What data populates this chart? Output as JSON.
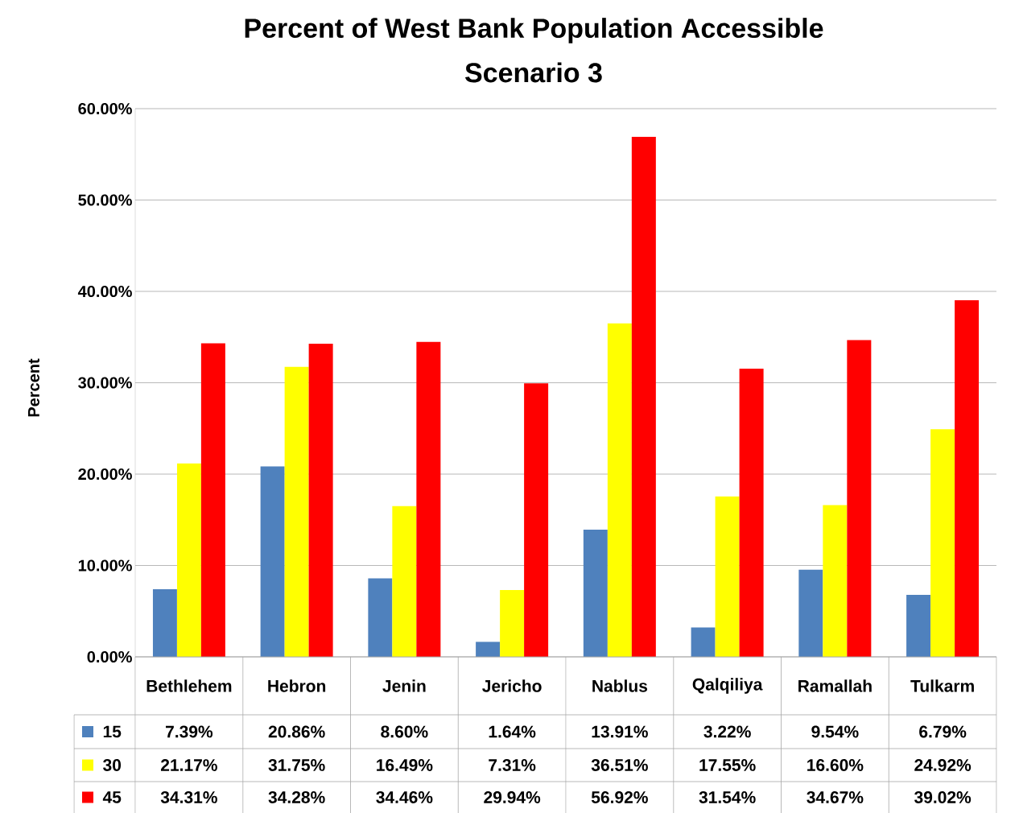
{
  "chart_data": {
    "type": "bar",
    "title": "Percent of West Bank Population Accessible",
    "subtitle": "Scenario 3",
    "ylabel": "Percent",
    "categories": [
      "Bethlehem",
      "Hebron",
      "Jenin",
      "Jericho",
      "Nablus",
      "Qalqiliya",
      "Ramallah",
      "Tulkarm"
    ],
    "series": [
      {
        "name": "15",
        "color": "#4f81bd",
        "values": [
          7.39,
          20.86,
          8.6,
          1.64,
          13.91,
          3.22,
          9.54,
          6.79
        ],
        "value_labels": [
          "7.39%",
          "20.86%",
          "8.60%",
          "1.64%",
          "13.91%",
          "3.22%",
          "9.54%",
          "6.79%"
        ]
      },
      {
        "name": "30",
        "color": "#ffff00",
        "values": [
          21.17,
          31.75,
          16.49,
          7.31,
          36.51,
          17.55,
          16.6,
          24.92
        ],
        "value_labels": [
          "21.17%",
          "31.75%",
          "16.49%",
          "7.31%",
          "36.51%",
          "17.55%",
          "16.60%",
          "24.92%"
        ]
      },
      {
        "name": "45",
        "color": "#ff0000",
        "values": [
          34.31,
          34.28,
          34.46,
          29.94,
          56.92,
          31.54,
          34.67,
          39.02
        ],
        "value_labels": [
          "34.31%",
          "34.28%",
          "34.46%",
          "29.94%",
          "56.92%",
          "31.54%",
          "34.67%",
          "39.02%"
        ]
      }
    ],
    "ylim": [
      0,
      60
    ],
    "yticks": [
      {
        "value": 0,
        "label": "0.00%"
      },
      {
        "value": 10,
        "label": "10.00%"
      },
      {
        "value": 20,
        "label": "20.00%"
      },
      {
        "value": 30,
        "label": "30.00%"
      },
      {
        "value": 40,
        "label": "40.00%"
      },
      {
        "value": 50,
        "label": "50.00%"
      },
      {
        "value": 60,
        "label": "60.00%"
      }
    ],
    "grid": "y",
    "legend": "bottom"
  }
}
